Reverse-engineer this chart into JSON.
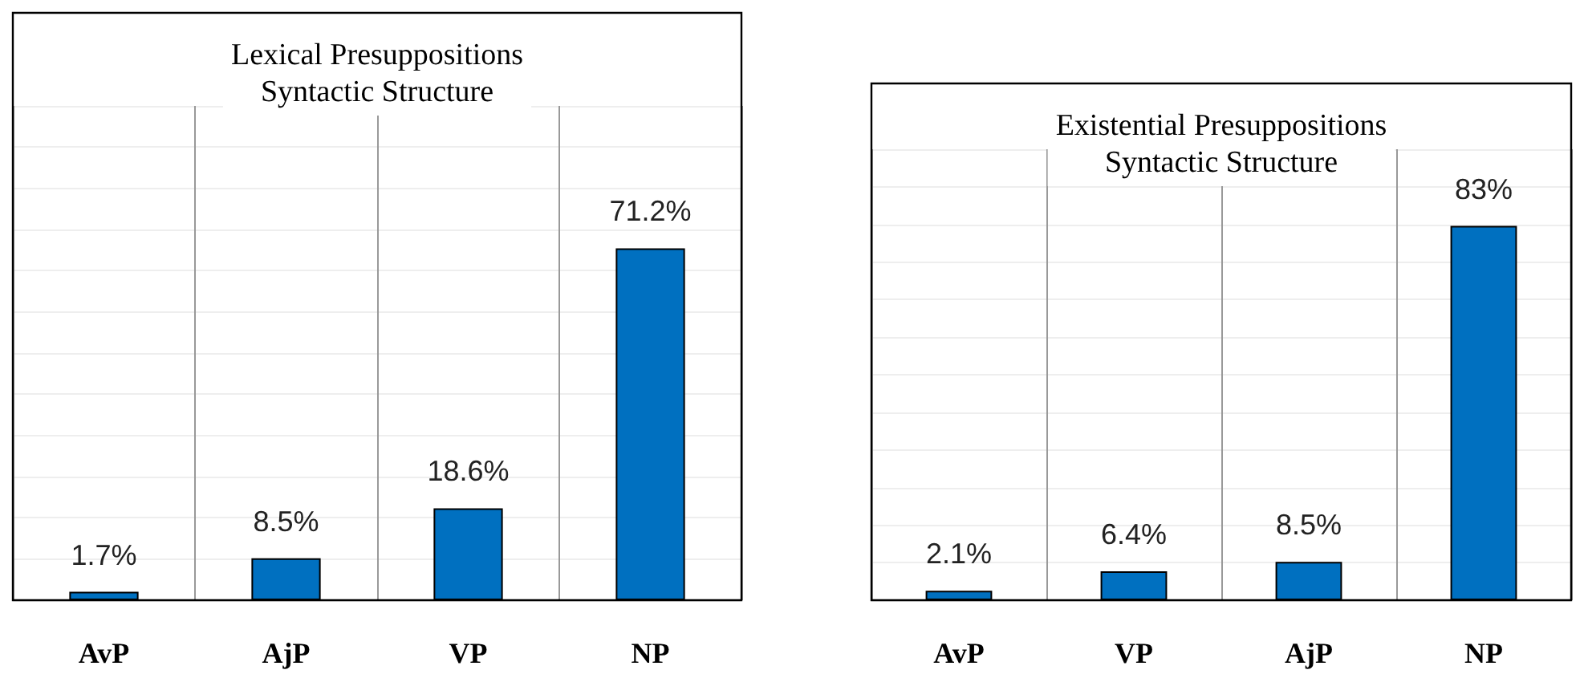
{
  "chart_data": [
    {
      "type": "bar",
      "title": "Lexical Presuppositions",
      "subtitle": "Syntactic Structure",
      "categories": [
        "AvP",
        "AjP",
        "VP",
        "NP"
      ],
      "values": [
        1.7,
        8.5,
        18.6,
        71.2
      ],
      "color": "#0070c0",
      "value_labels": [
        "1.7%",
        "8.5%",
        "18.6%",
        "71.2%"
      ],
      "ylim": [
        0,
        100
      ],
      "grid": true,
      "tick_labels": "x"
    },
    {
      "type": "bar",
      "title": "Existential Presuppositions",
      "subtitle": "Syntactic Structure",
      "categories": [
        "AvP",
        "VP",
        "AjP",
        "NP"
      ],
      "values": [
        2.1,
        6.4,
        8.5,
        83
      ],
      "color": "#0070c0",
      "value_labels": [
        "2.1%",
        "6.4%",
        "8.5%",
        "83%"
      ],
      "ylim": [
        0,
        100
      ],
      "grid": true,
      "tick_labels": "x"
    }
  ]
}
